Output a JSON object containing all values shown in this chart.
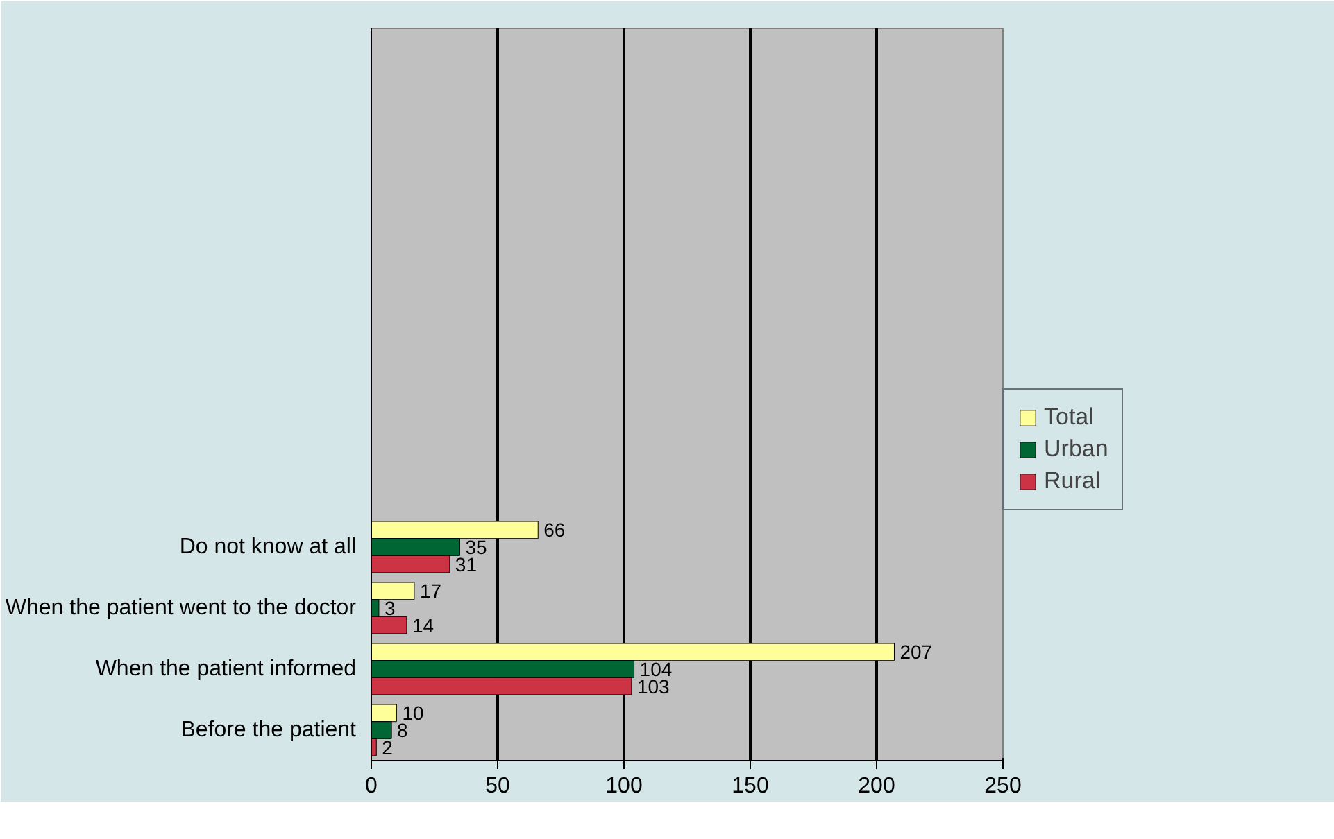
{
  "chart_data": {
    "type": "bar",
    "orientation": "horizontal",
    "categories": [
      null,
      null,
      null,
      null,
      null,
      null,
      null,
      null,
      "Do not know at all",
      "When the patient went to the doctor",
      "When the patient informed",
      "Before the patient"
    ],
    "series": [
      {
        "name": "Total",
        "color": "#ffff99",
        "values": [
          null,
          null,
          null,
          null,
          null,
          null,
          null,
          null,
          66,
          17,
          207,
          10
        ]
      },
      {
        "name": "Urban",
        "color": "#006633",
        "values": [
          null,
          null,
          null,
          null,
          null,
          null,
          null,
          null,
          35,
          3,
          104,
          8
        ]
      },
      {
        "name": "Rural",
        "color": "#cc3344",
        "values": [
          null,
          null,
          null,
          null,
          null,
          null,
          null,
          null,
          31,
          14,
          103,
          2
        ]
      }
    ],
    "xlim": [
      0,
      250
    ],
    "xticks": [
      0,
      50,
      100,
      150,
      200,
      250
    ],
    "grid": "x",
    "legend": "right",
    "data_labels": true
  }
}
